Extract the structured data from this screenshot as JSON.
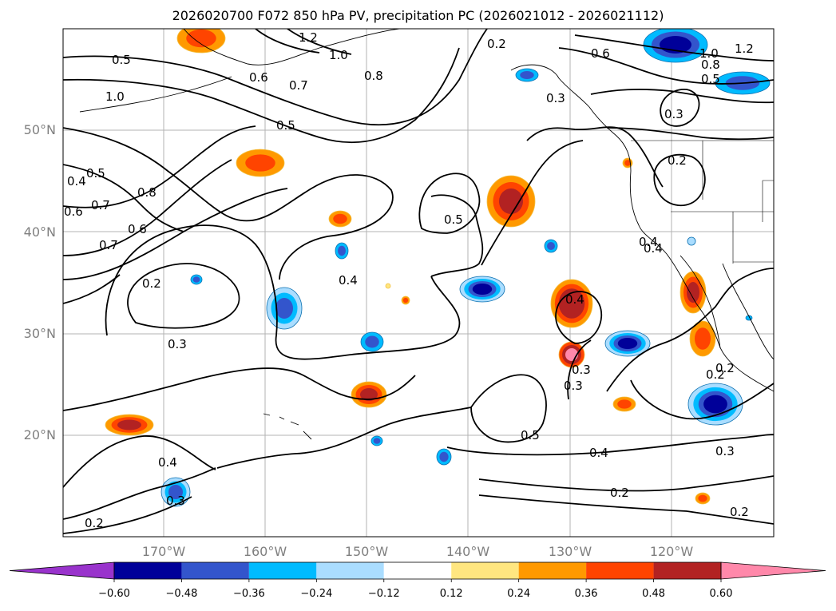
{
  "title": "2026020700 F072 850 hPa PV, precipitation PC (2026021012 - 2026021112)",
  "axes": {
    "lat_ticks": [
      "20°N",
      "30°N",
      "40°N",
      "50°N"
    ],
    "lon_ticks": [
      "170°W",
      "160°W",
      "150°W",
      "140°W",
      "130°W",
      "120°W"
    ]
  },
  "contour_labels": [
    "1.2",
    "1.0",
    "0.5",
    "0.8",
    "0.7",
    "0.6",
    "0.5",
    "1.0",
    "0.4",
    "0.5",
    "0.6",
    "0.7",
    "0.8",
    "0.6",
    "0.7",
    "0.2",
    "0.3",
    "0.4",
    "0.5",
    "0.4",
    "0.3",
    "0.5",
    "0.4",
    "0.2",
    "0.3",
    "0.2",
    "0.2",
    "0.4",
    "0.2",
    "0.4",
    "0.3",
    "0.3",
    "0.2",
    "0.2",
    "0.6",
    "1.0",
    "1.2",
    "0.8",
    "0.5",
    "0.3",
    "0.2",
    "0.4",
    "0.3"
  ],
  "colorbar": {
    "colors": [
      "#9933cc",
      "#000099",
      "#3355cc",
      "#00bbff",
      "#aaddff",
      "#ffffff",
      "#ffe680",
      "#ff9900",
      "#ff4400",
      "#b22222",
      "#ff88aa"
    ],
    "labels": [
      "−0.60",
      "−0.48",
      "−0.36",
      "−0.24",
      "−0.12",
      "0.12",
      "0.24",
      "0.36",
      "0.48",
      "0.60"
    ]
  }
}
